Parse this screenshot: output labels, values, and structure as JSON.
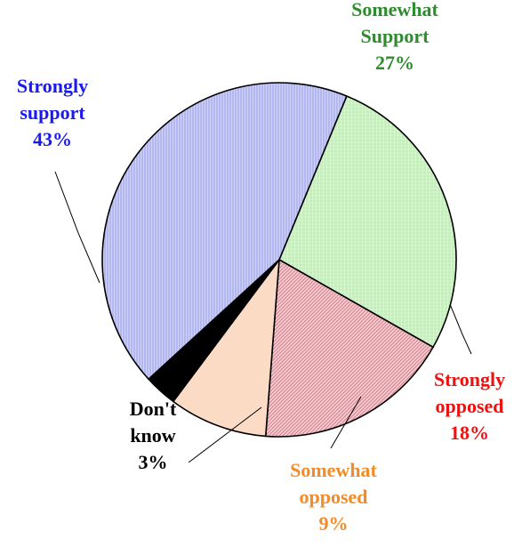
{
  "chart_data": {
    "type": "pie",
    "title": "",
    "slices": [
      {
        "label_lines": [
          "Somewhat",
          "Support"
        ],
        "value": 27,
        "value_label": "27%",
        "color": "#2e8b2e",
        "fill": "#d9f7d0"
      },
      {
        "label_lines": [
          "Strongly",
          "opposed"
        ],
        "value": 18,
        "value_label": "18%",
        "color": "#ee1111",
        "fill": "#f2b8c0"
      },
      {
        "label_lines": [
          "Somewhat",
          "opposed"
        ],
        "value": 9,
        "value_label": "9%",
        "color": "#f28c28",
        "fill": "#fdd9bf"
      },
      {
        "label_lines": [
          "Don't",
          "know"
        ],
        "value": 3,
        "value_label": "3%",
        "color": "#000000",
        "fill": "#000000"
      },
      {
        "label_lines": [
          "Strongly",
          "support"
        ],
        "value": 43,
        "value_label": "43%",
        "color": "#1a1aee",
        "fill": "#c3c6f4"
      }
    ],
    "legend": "none",
    "grid": false
  }
}
